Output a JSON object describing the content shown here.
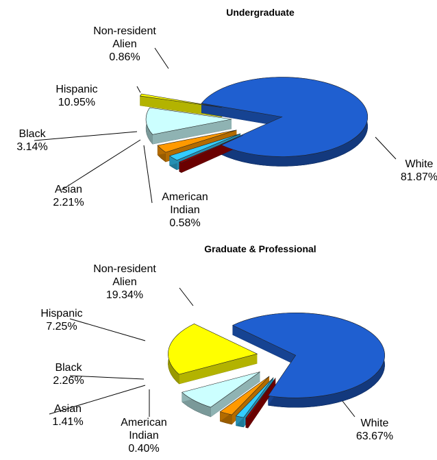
{
  "chart_data": [
    {
      "type": "pie3d",
      "title": "Undergraduate",
      "categories": [
        "White",
        "American Indian",
        "Asian",
        "Black",
        "Hispanic",
        "Non-resident Alien"
      ],
      "values": [
        81.87,
        0.58,
        2.21,
        3.14,
        10.95,
        0.86
      ],
      "value_labels": [
        "81.87%",
        "0.58%",
        "2.21%",
        "3.14%",
        "10.95%",
        "0.86%"
      ],
      "colors": [
        "#1f5fd0",
        "#990000",
        "#33ccff",
        "#ff9900",
        "#ccffff",
        "#ffff00"
      ]
    },
    {
      "type": "pie3d",
      "title": "Graduate & Professional",
      "categories": [
        "White",
        "American Indian",
        "Asian",
        "Black",
        "Hispanic",
        "Non-resident Alien"
      ],
      "values": [
        63.67,
        0.4,
        1.41,
        2.26,
        7.25,
        19.34
      ],
      "value_labels": [
        "63.67%",
        "0.40%",
        "1.41%",
        "2.26%",
        "7.25%",
        "19.34%"
      ],
      "colors": [
        "#1f5fd0",
        "#990000",
        "#33ccff",
        "#ff9900",
        "#ccffff",
        "#ffff00"
      ]
    }
  ]
}
